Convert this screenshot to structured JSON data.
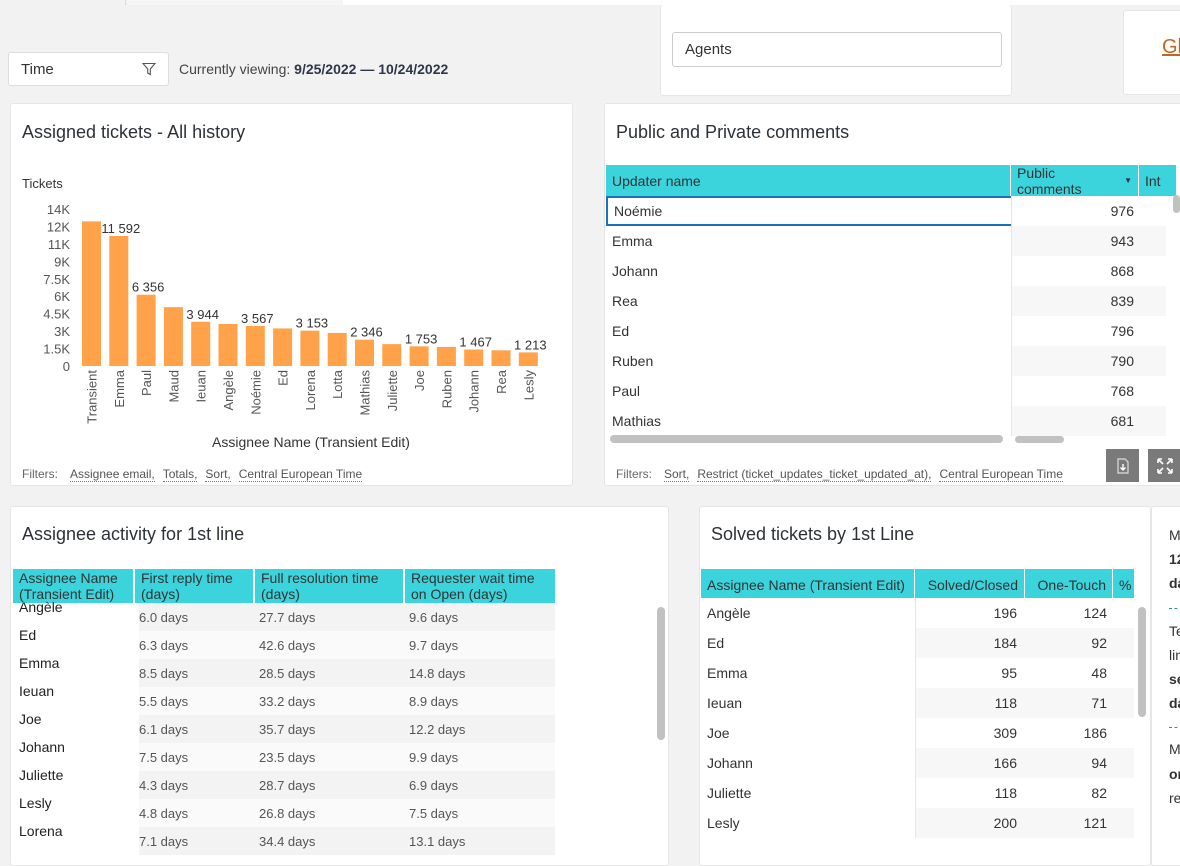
{
  "time_filter": {
    "label": "Time",
    "icon": "filter-icon"
  },
  "viewing": {
    "prefix": "Currently viewing:",
    "range": "9/25/2022 — 10/24/2022"
  },
  "agents_filter": {
    "value": "Agents"
  },
  "gl_link": {
    "label": "Gl"
  },
  "assigned_chart": {
    "title": "Assigned tickets - All history",
    "filters_label": "Filters:",
    "filters": [
      "Assignee email,",
      "Totals,",
      "Sort,",
      "Central European Time"
    ]
  },
  "chart_data": {
    "type": "bar",
    "title": "Assigned tickets - All history",
    "xlabel": "Assignee Name (Transient Edit)",
    "ylabel": "Tickets",
    "ylim": [
      0,
      14000
    ],
    "yticks": [
      "0",
      "1.5K",
      "3K",
      "4.5K",
      "6K",
      "7.5K",
      "9K",
      "11K",
      "12K",
      "14K"
    ],
    "ytick_values": [
      0,
      1500,
      3000,
      4500,
      6000,
      7500,
      9000,
      10500,
      12000,
      13500
    ],
    "categories": [
      "Transient",
      "Emma",
      "Paul",
      "Maud",
      "Ieuan",
      "Angèle",
      "Noémie",
      "Ed",
      "Lorena",
      "Lotta",
      "Mathias",
      "Juliette",
      "Joe",
      "Ruben",
      "Johann",
      "Rea",
      "Lesly"
    ],
    "values": [
      12900,
      11592,
      6356,
      5250,
      3944,
      3750,
      3567,
      3350,
      3153,
      2950,
      2346,
      1950,
      1753,
      1700,
      1467,
      1400,
      1213
    ],
    "data_labels": [
      "",
      "11 592",
      "6 356",
      "",
      "3 944",
      "",
      "3 567",
      "",
      "3 153",
      "",
      "2 346",
      "",
      "1 753",
      "",
      "1 467",
      "",
      "1 213"
    ],
    "color": "#ffa24a",
    "grid": false,
    "legend": "none"
  },
  "comments": {
    "title": "Public and Private comments",
    "columns": [
      "Updater name",
      "Public comments",
      "Int"
    ],
    "sort_indicator": "caret-down-icon",
    "rows": [
      {
        "name": "Noémie",
        "public": "976"
      },
      {
        "name": "Emma",
        "public": "943"
      },
      {
        "name": "Johann",
        "public": "868"
      },
      {
        "name": "Rea",
        "public": "839"
      },
      {
        "name": "Ed",
        "public": "796"
      },
      {
        "name": "Ruben",
        "public": "790"
      },
      {
        "name": "Paul",
        "public": "768"
      },
      {
        "name": "Mathias",
        "public": "681"
      }
    ],
    "filters_label": "Filters:",
    "filters": [
      "Sort,",
      "Restrict (ticket_updates_ticket_updated_at),",
      "Central European Time"
    ],
    "download_icon": "download-icon",
    "expand_icon": "expand-icon"
  },
  "activity": {
    "title": "Assignee activity for 1st line",
    "columns": [
      "Assignee Name (Transient Edit)",
      "First reply time (days)",
      "Full resolution time (days)",
      "Requester wait time on Open (days)"
    ],
    "rows": [
      {
        "name": "Angèle",
        "first": "6.0 days",
        "full": "27.7 days",
        "wait": "9.6 days"
      },
      {
        "name": "Ed",
        "first": "6.3 days",
        "full": "42.6 days",
        "wait": "9.7 days"
      },
      {
        "name": "Emma",
        "first": "8.5 days",
        "full": "28.5 days",
        "wait": "14.8 days"
      },
      {
        "name": "Ieuan",
        "first": "5.5 days",
        "full": "33.2 days",
        "wait": "8.9 days"
      },
      {
        "name": "Joe",
        "first": "6.1 days",
        "full": "35.7 days",
        "wait": "12.2 days"
      },
      {
        "name": "Johann",
        "first": "7.5 days",
        "full": "23.5 days",
        "wait": "9.9 days"
      },
      {
        "name": "Juliette",
        "first": "4.3 days",
        "full": "28.7 days",
        "wait": "6.9 days"
      },
      {
        "name": "Lesly",
        "first": "4.8 days",
        "full": "26.8 days",
        "wait": "7.5 days"
      },
      {
        "name": "Lorena",
        "first": "7.1 days",
        "full": "34.4 days",
        "wait": "13.1 days"
      }
    ]
  },
  "solved": {
    "title": "Solved tickets by 1st Line",
    "columns": [
      "Assignee Name (Transient Edit)",
      "Solved/Closed",
      "One-Touch",
      "%"
    ],
    "rows": [
      {
        "name": "Angèle",
        "solved": "196",
        "one_touch": "124"
      },
      {
        "name": "Ed",
        "solved": "184",
        "one_touch": "92"
      },
      {
        "name": "Emma",
        "solved": "95",
        "one_touch": "48"
      },
      {
        "name": "Ieuan",
        "solved": "118",
        "one_touch": "71"
      },
      {
        "name": "Joe",
        "solved": "309",
        "one_touch": "186"
      },
      {
        "name": "Johann",
        "solved": "166",
        "one_touch": "94"
      },
      {
        "name": "Juliette",
        "solved": "118",
        "one_touch": "82"
      },
      {
        "name": "Lesly",
        "solved": "200",
        "one_touch": "121"
      }
    ]
  },
  "side_note": {
    "lines": [
      "M",
      "12",
      "da",
      "Te",
      "lin",
      "se",
      "da",
      "M",
      "or",
      "re"
    ]
  }
}
